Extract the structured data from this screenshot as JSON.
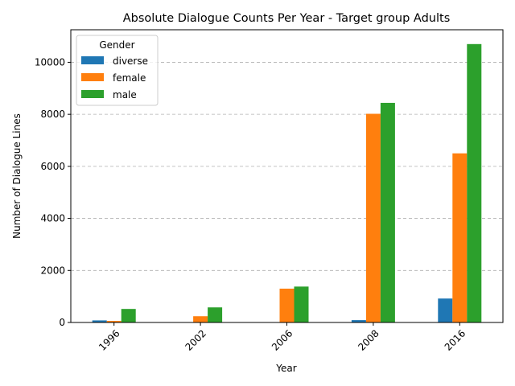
{
  "chart_data": {
    "type": "bar",
    "title": "Absolute Dialogue Counts Per Year - Target group Adults",
    "xlabel": "Year",
    "ylabel": "Number of Dialogue Lines",
    "categories": [
      "1996",
      "2002",
      "2006",
      "2008",
      "2016"
    ],
    "ylim": [
      0,
      11250
    ],
    "yticks": [
      0,
      2000,
      4000,
      6000,
      8000,
      10000
    ],
    "grid": "y-dashed",
    "legend": {
      "title": "Gender",
      "placement": "top-left"
    },
    "series": [
      {
        "name": "diverse",
        "color": "#1f77b4",
        "values": [
          80,
          0,
          0,
          90,
          920
        ]
      },
      {
        "name": "female",
        "color": "#ff7f0e",
        "values": [
          60,
          240,
          1300,
          8020,
          6500
        ]
      },
      {
        "name": "male",
        "color": "#2ca02c",
        "values": [
          520,
          580,
          1380,
          8440,
          10700
        ]
      }
    ]
  }
}
